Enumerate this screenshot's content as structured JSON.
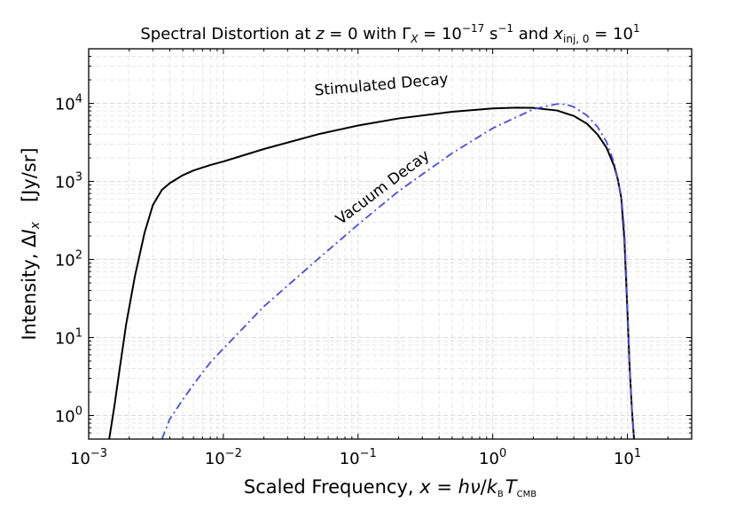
{
  "chart_data": {
    "type": "line",
    "title": "Spectral Distortion at z = 0 with Γ_X = 10^−17 s^−1 and x_inj,0 = 10^1",
    "title_parts": {
      "prefix": "Spectral Distortion at ",
      "z": "z",
      "eq0": " = 0 with ",
      "gamma": "Γ",
      "gamma_sub": "X",
      "eq1": " = 10",
      "exp1": "−17",
      "unit": " s",
      "unit_exp": "−1",
      "and": " and ",
      "xinj": "x",
      "xinj_sub": "inj, 0",
      "eq2": " = 10",
      "exp2": "1"
    },
    "xlabel": "Scaled Frequency, x = hν/k_B T_CMB",
    "xlabel_parts": {
      "prefix": "Scaled Frequency, ",
      "x": "x",
      "eq": " = ",
      "h": "h",
      "nu": "ν",
      "slash": "/",
      "k": "k",
      "k_sub": "B",
      "T": "T",
      "T_sub": "CMB"
    },
    "ylabel": "Intensity, ΔI_x [Jy/sr]",
    "ylabel_parts": {
      "prefix": "Intensity, Δ",
      "I": "I",
      "I_sub": "x",
      "unit": "[Jy/sr]"
    },
    "xscale": "log",
    "yscale": "log",
    "xlim": [
      0.001,
      30
    ],
    "ylim": [
      0.5,
      50000
    ],
    "grid": true,
    "x_ticks": [
      {
        "value": 0.001,
        "base": "10",
        "exp": "−3"
      },
      {
        "value": 0.01,
        "base": "10",
        "exp": "−2"
      },
      {
        "value": 0.1,
        "base": "10",
        "exp": "−1"
      },
      {
        "value": 1,
        "base": "10",
        "exp": "0"
      },
      {
        "value": 10,
        "base": "10",
        "exp": "1"
      }
    ],
    "y_ticks": [
      {
        "value": 1,
        "base": "10",
        "exp": "0"
      },
      {
        "value": 10,
        "base": "10",
        "exp": "1"
      },
      {
        "value": 100,
        "base": "10",
        "exp": "2"
      },
      {
        "value": 1000,
        "base": "10",
        "exp": "3"
      },
      {
        "value": 10000,
        "base": "10",
        "exp": "4"
      }
    ],
    "series": [
      {
        "name": "Stimulated Decay",
        "color": "#000000",
        "dash": "solid",
        "x": [
          0.00142,
          0.00155,
          0.0017,
          0.0019,
          0.0022,
          0.0026,
          0.003,
          0.0035,
          0.004,
          0.005,
          0.006,
          0.008,
          0.01,
          0.02,
          0.05,
          0.1,
          0.2,
          0.5,
          1.0,
          1.5,
          2.0,
          3.0,
          4.0,
          5.0,
          6.0,
          7.0,
          8.0,
          8.5,
          9.0,
          9.5,
          10.0,
          10.4,
          10.8,
          11.2
        ],
        "y": [
          0.5,
          1.3,
          4,
          15,
          60,
          220,
          500,
          780,
          950,
          1200,
          1380,
          1620,
          1800,
          2600,
          4000,
          5200,
          6400,
          7800,
          8600,
          8800,
          8750,
          8100,
          6900,
          5500,
          4000,
          2700,
          1550,
          1050,
          620,
          180,
          22,
          4,
          1.2,
          0.5
        ]
      },
      {
        "name": "Vacuum Decay",
        "color": "#4a4ae6",
        "dash": "dashdot",
        "x": [
          0.0035,
          0.004,
          0.005,
          0.006,
          0.008,
          0.01,
          0.02,
          0.05,
          0.1,
          0.2,
          0.5,
          1.0,
          2.0,
          2.5,
          3.0,
          3.5,
          4.0,
          5.0,
          6.0,
          7.0,
          8.0,
          9.0,
          9.5,
          10.0,
          10.4,
          10.8,
          11.2
        ],
        "y": [
          0.5,
          0.9,
          1.6,
          2.5,
          4.8,
          7.2,
          25,
          100,
          280,
          750,
          2300,
          4800,
          8400,
          9200,
          9800,
          9700,
          9000,
          7000,
          5000,
          3200,
          1700,
          650,
          240,
          25,
          4,
          1.2,
          0.5
        ]
      }
    ],
    "annotations": [
      {
        "text": "Stimulated Decay",
        "x": 0.15,
        "y": 15000,
        "rotation": -5
      },
      {
        "text": "Vacuum Decay",
        "x": 0.16,
        "y": 750,
        "rotation": -37
      }
    ]
  }
}
